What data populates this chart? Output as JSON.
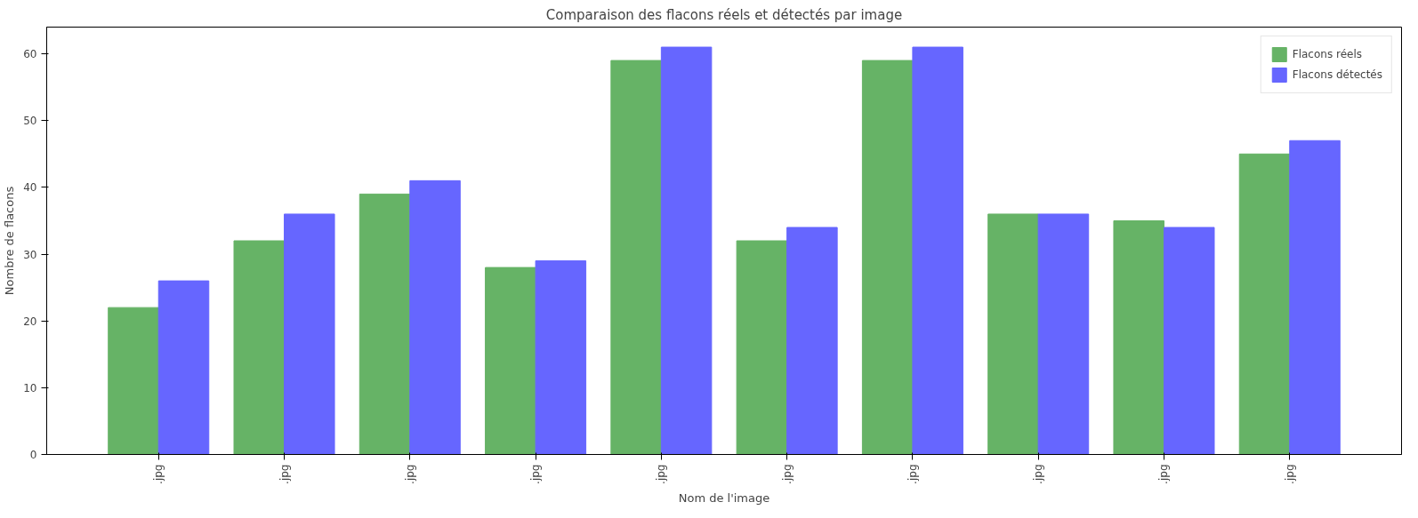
{
  "chart_data": {
    "type": "bar",
    "title": "Comparaison des flacons réels et détectés par image",
    "xlabel": "Nom de l'image",
    "ylabel": "Nombre de flacons",
    "categories": [
      ".jpg",
      ".jpg",
      ".jpg",
      ".jpg",
      ".jpg",
      ".jpg",
      ".jpg",
      ".jpg",
      ".jpg",
      ".jpg"
    ],
    "series": [
      {
        "name": "Flacons réels",
        "color": "#66b366",
        "values": [
          22,
          32,
          39,
          28,
          59,
          32,
          59,
          36,
          35,
          45
        ]
      },
      {
        "name": "Flacons détectés",
        "color": "#6666ff",
        "values": [
          26,
          36,
          41,
          29,
          61,
          34,
          61,
          36,
          34,
          47
        ]
      }
    ],
    "ylim": [
      0,
      64
    ],
    "yticks": [
      0,
      10,
      20,
      30,
      40,
      50,
      60
    ],
    "grid": false,
    "legend": "top right"
  }
}
